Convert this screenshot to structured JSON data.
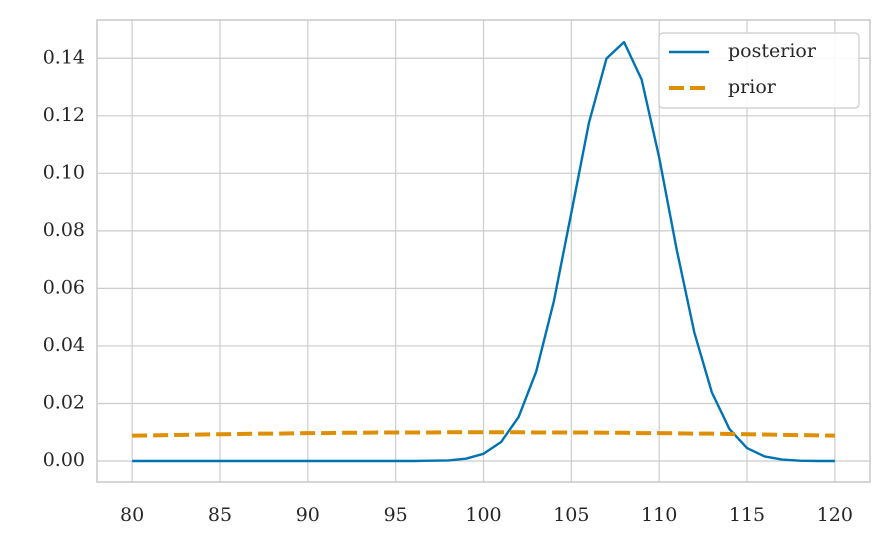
{
  "chart_data": {
    "type": "line",
    "x": [
      80,
      81,
      82,
      83,
      84,
      85,
      86,
      87,
      88,
      89,
      90,
      91,
      92,
      93,
      94,
      95,
      96,
      97,
      98,
      99,
      100,
      101,
      102,
      103,
      104,
      105,
      106,
      107,
      108,
      109,
      110,
      111,
      112,
      113,
      114,
      115,
      116,
      117,
      118,
      119,
      120
    ],
    "series": [
      {
        "name": "posterior",
        "color": "#0173b2",
        "dash": false,
        "values": [
          0,
          0,
          0,
          0,
          0,
          0,
          0,
          0,
          0,
          0,
          0,
          0,
          0,
          0,
          0,
          0,
          0,
          0.0001,
          0.0002,
          0.0008,
          0.0025,
          0.0066,
          0.0153,
          0.0311,
          0.0554,
          0.0863,
          0.1175,
          0.1399,
          0.1456,
          0.1326,
          0.1055,
          0.0734,
          0.0447,
          0.0238,
          0.0111,
          0.0045,
          0.0016,
          0.0005,
          0.0001,
          0,
          0
        ]
      },
      {
        "name": "prior",
        "color": "#de8f05",
        "dash": true,
        "values": [
          0.0088,
          0.0089,
          0.009,
          0.0091,
          0.0092,
          0.0093,
          0.0094,
          0.0095,
          0.0095,
          0.0096,
          0.0097,
          0.0097,
          0.0098,
          0.0098,
          0.0099,
          0.0099,
          0.0099,
          0.0099,
          0.01,
          0.01,
          0.01,
          0.01,
          0.01,
          0.0099,
          0.0099,
          0.0099,
          0.0099,
          0.0098,
          0.0098,
          0.0097,
          0.0097,
          0.0096,
          0.0095,
          0.0095,
          0.0094,
          0.0093,
          0.0092,
          0.0091,
          0.009,
          0.0089,
          0.0088
        ]
      }
    ],
    "xlim": [
      78,
      122
    ],
    "ylim": [
      -0.0073,
      0.1533
    ],
    "xticks": [
      80,
      85,
      90,
      95,
      100,
      105,
      110,
      115,
      120
    ],
    "yticks": [
      {
        "value": 0,
        "label": "0.00"
      },
      {
        "value": 0.02,
        "label": "0.02"
      },
      {
        "value": 0.04,
        "label": "0.04"
      },
      {
        "value": 0.06,
        "label": "0.06"
      },
      {
        "value": 0.08,
        "label": "0.08"
      },
      {
        "value": 0.1,
        "label": "0.10"
      },
      {
        "value": 0.12,
        "label": "0.12"
      },
      {
        "value": 0.14,
        "label": "0.14"
      }
    ],
    "grid": true,
    "legend": "upper right"
  }
}
